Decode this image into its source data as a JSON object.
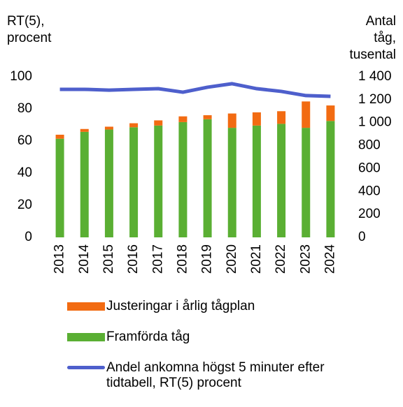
{
  "chart_data": {
    "type": "bar",
    "y_label": [
      "RT(5),",
      "procent"
    ],
    "y2_label": [
      "Antal",
      "tåg,",
      "tusental"
    ],
    "categories": [
      "2013",
      "2014",
      "2015",
      "2016",
      "2017",
      "2018",
      "2019",
      "2020",
      "2021",
      "2022",
      "2023",
      "2024"
    ],
    "series": [
      {
        "name": "Framförda tåg",
        "color": "#5aaf33",
        "axis": "y2",
        "stack": true,
        "values": [
          860,
          920,
          940,
          960,
          975,
          1005,
          1030,
          955,
          975,
          990,
          955,
          1015
        ]
      },
      {
        "name": "Justeringar i årlig tågplan",
        "color": "#f26b12",
        "axis": "y2",
        "stack": true,
        "values": [
          35,
          25,
          25,
          35,
          45,
          50,
          35,
          125,
          115,
          110,
          230,
          135
        ]
      },
      {
        "name": "Andel ankomna högst 5 minuter efter tidtabell, RT(5) procent",
        "color": "#4e5fcc",
        "type": "line",
        "values": [
          92.2,
          92.2,
          91.7,
          92.2,
          92.6,
          90.4,
          93.5,
          95.7,
          92.6,
          90.9,
          88.3,
          87.8
        ]
      }
    ],
    "ylim": [
      0,
      100
    ],
    "yticks": [
      0,
      20,
      40,
      60,
      80,
      100
    ],
    "y2lim": [
      0,
      1400
    ],
    "y2ticks": [
      0,
      200,
      400,
      600,
      800,
      {
        "value": 1000,
        "label": "1 000"
      },
      {
        "value": 1200,
        "label": "1 200"
      },
      {
        "value": 1400,
        "label": "1 400"
      }
    ],
    "grid": false
  }
}
